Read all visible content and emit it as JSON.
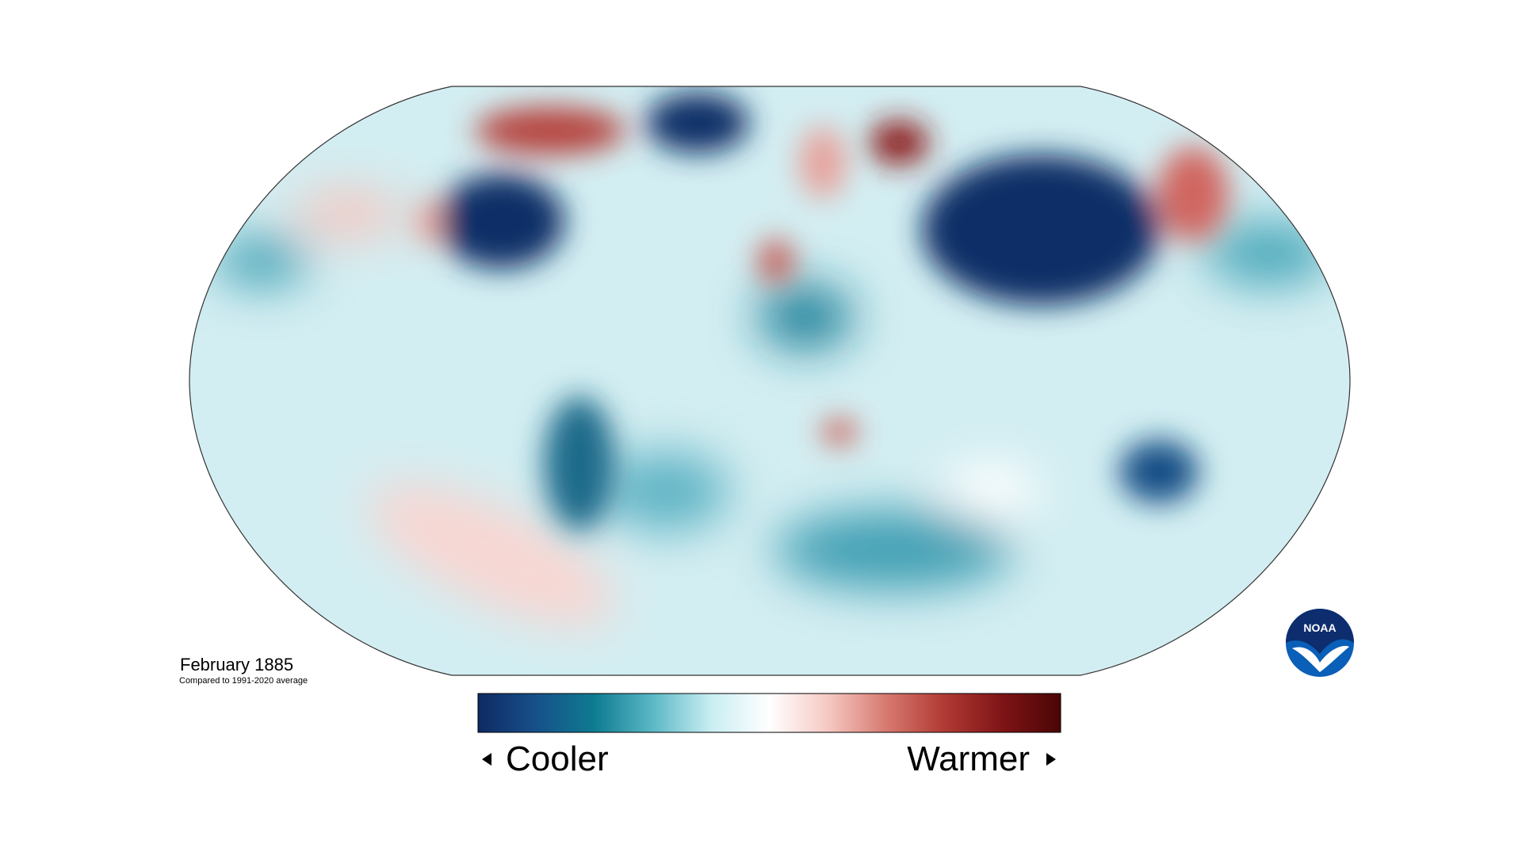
{
  "title": "February 1885",
  "subtitle": "Compared to 1991-2020 average",
  "legend": {
    "low_label": "Cooler",
    "high_label": "Warmer",
    "colors": [
      "#0e2a63",
      "#17508a",
      "#0e7c91",
      "#5bb8c6",
      "#c9eef2",
      "#ffffff",
      "#f6c9c3",
      "#d77a70",
      "#b13a34",
      "#7e1416",
      "#4a0505"
    ]
  },
  "logo": {
    "text": "NOAA"
  }
}
